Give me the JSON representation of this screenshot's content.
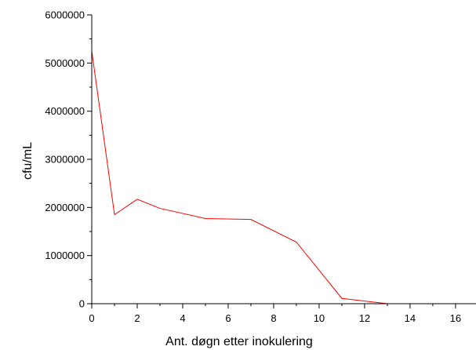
{
  "chart_data": {
    "type": "line",
    "title": "",
    "xlabel": "Ant. døgn etter inokulering",
    "ylabel": "cfu/mL",
    "xlim": [
      0,
      16.9
    ],
    "ylim": [
      0,
      6000000
    ],
    "xticks": [
      0,
      2,
      4,
      6,
      8,
      10,
      12,
      14,
      16
    ],
    "yticks": [
      0,
      1000000,
      2000000,
      3000000,
      4000000,
      5000000,
      6000000
    ],
    "xtick_labels": [
      "0",
      "2",
      "4",
      "6",
      "8",
      "10",
      "12",
      "14",
      "16"
    ],
    "ytick_labels": [
      "0",
      "1000000",
      "2000000",
      "3000000",
      "4000000",
      "5000000",
      "6000000"
    ],
    "grid": false,
    "legend": "none",
    "series": [
      {
        "color": "#ff0000",
        "x": [
          0,
          1,
          2,
          3,
          5,
          7,
          9,
          11,
          13,
          15,
          17
        ],
        "y": [
          5250000,
          1850000,
          2170000,
          1980000,
          1770000,
          1750000,
          1280000,
          110000,
          0,
          0,
          0
        ]
      }
    ]
  }
}
